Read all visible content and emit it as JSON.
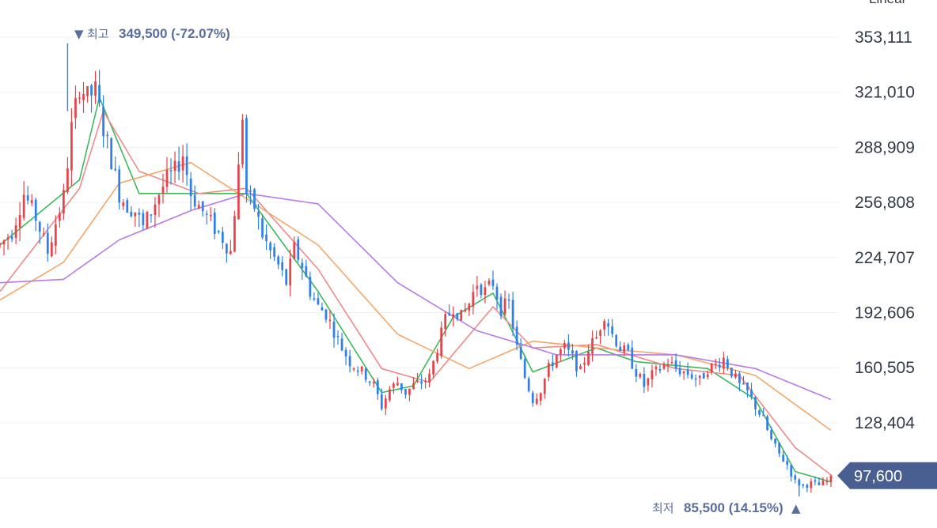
{
  "chart_data": {
    "type": "candlestick",
    "scale_label": "Linear",
    "y_axis": {
      "ticks": [
        "353,111",
        "321,010",
        "288,909",
        "256,808",
        "224,707",
        "192,606",
        "160,505",
        "128,404"
      ],
      "tick_values": [
        353111,
        321010,
        288909,
        256808,
        224707,
        192606,
        160505,
        128404
      ],
      "range": [
        85000,
        360000
      ]
    },
    "high_annotation": {
      "marker": "▼",
      "label": "최고",
      "value": "349,500 (-72.07%)",
      "price": 349500
    },
    "low_annotation": {
      "label": "최저",
      "value": "85,500 (14.15%)",
      "marker": "▲",
      "price": 85500
    },
    "last_price": {
      "label": "97,600",
      "value": 97600
    },
    "candle_colors": {
      "up": "#e8434b",
      "down": "#2f80ed"
    },
    "moving_averages": [
      {
        "color": "#3cba5a"
      },
      {
        "color": "#f08a8a"
      },
      {
        "color": "#f4a766"
      },
      {
        "color": "#b77be8"
      }
    ],
    "price_path": [
      [
        0,
        232000
      ],
      [
        3,
        240000
      ],
      [
        6,
        262000
      ],
      [
        9,
        248000
      ],
      [
        12,
        228000
      ],
      [
        14,
        245000
      ],
      [
        16,
        260000
      ],
      [
        18,
        300000
      ],
      [
        20,
        325000
      ],
      [
        22,
        318000
      ],
      [
        24,
        322000
      ],
      [
        26,
        300000
      ],
      [
        28,
        282000
      ],
      [
        30,
        262000
      ],
      [
        32,
        255000
      ],
      [
        34,
        252000
      ],
      [
        36,
        242000
      ],
      [
        38,
        252000
      ],
      [
        40,
        262000
      ],
      [
        42,
        270000
      ],
      [
        44,
        275000
      ],
      [
        46,
        285000
      ],
      [
        48,
        262000
      ],
      [
        50,
        255000
      ],
      [
        52,
        248000
      ],
      [
        54,
        242000
      ],
      [
        56,
        236000
      ],
      [
        58,
        228000
      ],
      [
        60,
        276000
      ],
      [
        61,
        308000
      ],
      [
        62,
        262000
      ],
      [
        64,
        254000
      ],
      [
        66,
        238000
      ],
      [
        68,
        228000
      ],
      [
        70,
        220000
      ],
      [
        72,
        210000
      ],
      [
        74,
        230000
      ],
      [
        76,
        220000
      ],
      [
        78,
        205000
      ],
      [
        80,
        196000
      ],
      [
        82,
        192000
      ],
      [
        84,
        182000
      ],
      [
        86,
        172000
      ],
      [
        88,
        164000
      ],
      [
        90,
        160000
      ],
      [
        92,
        156000
      ],
      [
        94,
        150000
      ],
      [
        96,
        138000
      ],
      [
        98,
        148000
      ],
      [
        100,
        152000
      ],
      [
        102,
        146000
      ],
      [
        104,
        150000
      ],
      [
        106,
        152000
      ],
      [
        108,
        155000
      ],
      [
        110,
        172000
      ],
      [
        112,
        188000
      ],
      [
        114,
        196000
      ],
      [
        116,
        190000
      ],
      [
        118,
        198000
      ],
      [
        120,
        210000
      ],
      [
        122,
        205000
      ],
      [
        124,
        210000
      ],
      [
        126,
        195000
      ],
      [
        128,
        198000
      ],
      [
        130,
        172000
      ],
      [
        132,
        155000
      ],
      [
        134,
        142000
      ],
      [
        136,
        148000
      ],
      [
        138,
        160000
      ],
      [
        140,
        168000
      ],
      [
        142,
        172000
      ],
      [
        144,
        166000
      ],
      [
        146,
        158000
      ],
      [
        148,
        172000
      ],
      [
        150,
        178000
      ],
      [
        152,
        192000
      ],
      [
        154,
        180000
      ],
      [
        156,
        172000
      ],
      [
        158,
        168000
      ],
      [
        160,
        158000
      ],
      [
        162,
        150000
      ],
      [
        164,
        156000
      ],
      [
        166,
        160000
      ],
      [
        168,
        164000
      ],
      [
        170,
        160000
      ],
      [
        172,
        158000
      ],
      [
        174,
        156000
      ],
      [
        176,
        153000
      ],
      [
        178,
        160000
      ],
      [
        180,
        162000
      ],
      [
        182,
        166000
      ],
      [
        184,
        158000
      ],
      [
        186,
        150000
      ],
      [
        188,
        146000
      ],
      [
        190,
        138000
      ],
      [
        192,
        130000
      ],
      [
        194,
        118000
      ],
      [
        196,
        110000
      ],
      [
        198,
        104000
      ],
      [
        200,
        94000
      ],
      [
        202,
        92000
      ],
      [
        204,
        93000
      ],
      [
        206,
        92000
      ],
      [
        208,
        94000
      ],
      [
        209,
        97600
      ]
    ],
    "ma_paths": [
      [
        [
          0,
          232000
        ],
        [
          20,
          270000
        ],
        [
          25,
          318000
        ],
        [
          35,
          262000
        ],
        [
          50,
          262000
        ],
        [
          62,
          262000
        ],
        [
          80,
          205000
        ],
        [
          96,
          146000
        ],
        [
          104,
          150000
        ],
        [
          114,
          190000
        ],
        [
          124,
          204000
        ],
        [
          134,
          158000
        ],
        [
          150,
          172000
        ],
        [
          160,
          164000
        ],
        [
          178,
          160000
        ],
        [
          190,
          142000
        ],
        [
          200,
          100000
        ],
        [
          209,
          94000
        ]
      ],
      [
        [
          0,
          205000
        ],
        [
          20,
          265000
        ],
        [
          26,
          310000
        ],
        [
          35,
          275000
        ],
        [
          50,
          262000
        ],
        [
          62,
          265000
        ],
        [
          80,
          218000
        ],
        [
          96,
          160000
        ],
        [
          108,
          152000
        ],
        [
          124,
          196000
        ],
        [
          134,
          172000
        ],
        [
          150,
          174000
        ],
        [
          170,
          160000
        ],
        [
          186,
          156000
        ],
        [
          200,
          114000
        ],
        [
          209,
          98000
        ]
      ],
      [
        [
          0,
          200000
        ],
        [
          16,
          222000
        ],
        [
          30,
          268000
        ],
        [
          48,
          280000
        ],
        [
          60,
          262000
        ],
        [
          80,
          232000
        ],
        [
          100,
          180000
        ],
        [
          118,
          160000
        ],
        [
          134,
          176000
        ],
        [
          150,
          172000
        ],
        [
          170,
          168000
        ],
        [
          190,
          156000
        ],
        [
          209,
          124000
        ]
      ],
      [
        [
          0,
          210000
        ],
        [
          16,
          212000
        ],
        [
          30,
          235000
        ],
        [
          48,
          252000
        ],
        [
          62,
          262000
        ],
        [
          80,
          256000
        ],
        [
          100,
          210000
        ],
        [
          120,
          182000
        ],
        [
          140,
          168000
        ],
        [
          170,
          168000
        ],
        [
          190,
          160000
        ],
        [
          209,
          142000
        ]
      ]
    ]
  }
}
